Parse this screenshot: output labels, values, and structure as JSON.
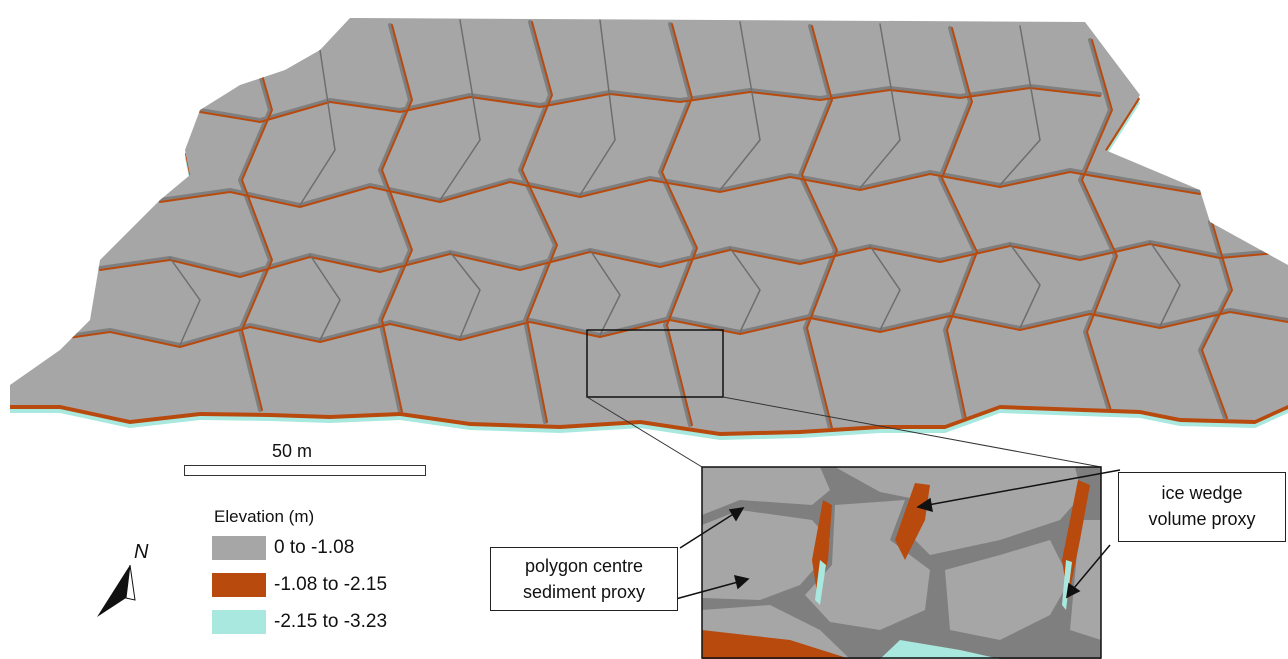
{
  "scale": {
    "label": "50 m"
  },
  "legend": {
    "title": "Elevation (m)",
    "items": [
      {
        "label": "0 to -1.08",
        "color": "#a6a6a6"
      },
      {
        "label": "-1.08 to -2.15",
        "color": "#b84a0e"
      },
      {
        "label": "-2.15 to -3.23",
        "color": "#a9e8de"
      }
    ]
  },
  "north": {
    "label": "N"
  },
  "callouts": {
    "left": {
      "line1": "polygon centre",
      "line2": "sediment proxy"
    },
    "right": {
      "line1": "ice wedge",
      "line2": "volume proxy"
    }
  },
  "colors": {
    "top": "#a6a6a6",
    "side": "#7f7f7f",
    "mid": "#b84a0e",
    "base": "#a9e8de"
  }
}
